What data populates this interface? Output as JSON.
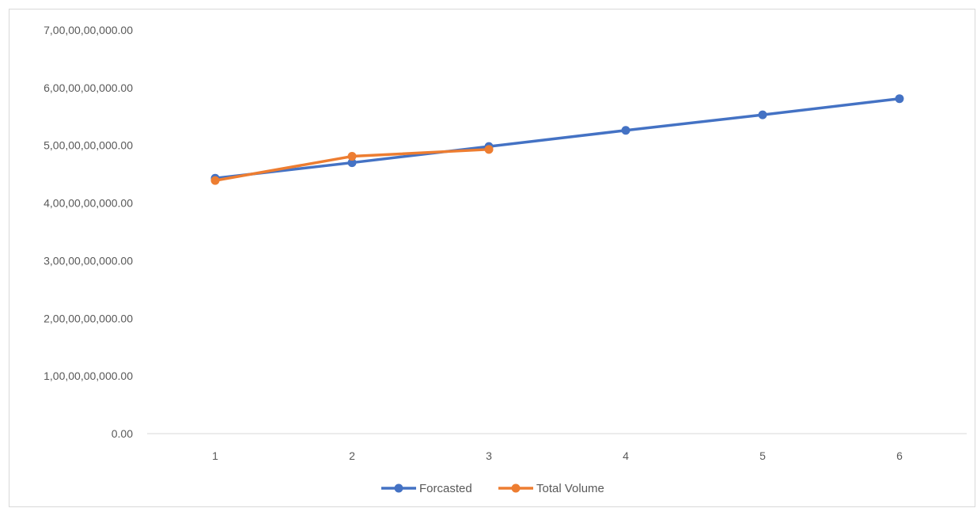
{
  "chart_data": {
    "type": "line",
    "title": "",
    "xlabel": "",
    "ylabel": "",
    "x": [
      1,
      2,
      3,
      4,
      5,
      6
    ],
    "x_tick_labels": [
      "1",
      "2",
      "3",
      "4",
      "5",
      "6"
    ],
    "ylim": [
      0,
      7000000000
    ],
    "y_ticks": [
      0,
      1000000000,
      2000000000,
      3000000000,
      4000000000,
      5000000000,
      6000000000,
      7000000000
    ],
    "y_tick_labels": [
      "0.00",
      "1,00,00,00,000.00",
      "2,00,00,00,000.00",
      "3,00,00,00,000.00",
      "4,00,00,00,000.00",
      "5,00,00,00,000.00",
      "6,00,00,00,000.00",
      "7,00,00,00,000.00"
    ],
    "grid": false,
    "legend_position": "bottom",
    "series": [
      {
        "name": "Forcasted",
        "color": "#4472C4",
        "x": [
          1,
          2,
          3,
          4,
          5,
          6
        ],
        "values": [
          4430000000,
          4700000000,
          4980000000,
          5260000000,
          5530000000,
          5810000000
        ]
      },
      {
        "name": "Total Volume",
        "color": "#ED7D31",
        "x": [
          1,
          2,
          3
        ],
        "values": [
          4390000000,
          4810000000,
          4930000000
        ]
      }
    ]
  }
}
